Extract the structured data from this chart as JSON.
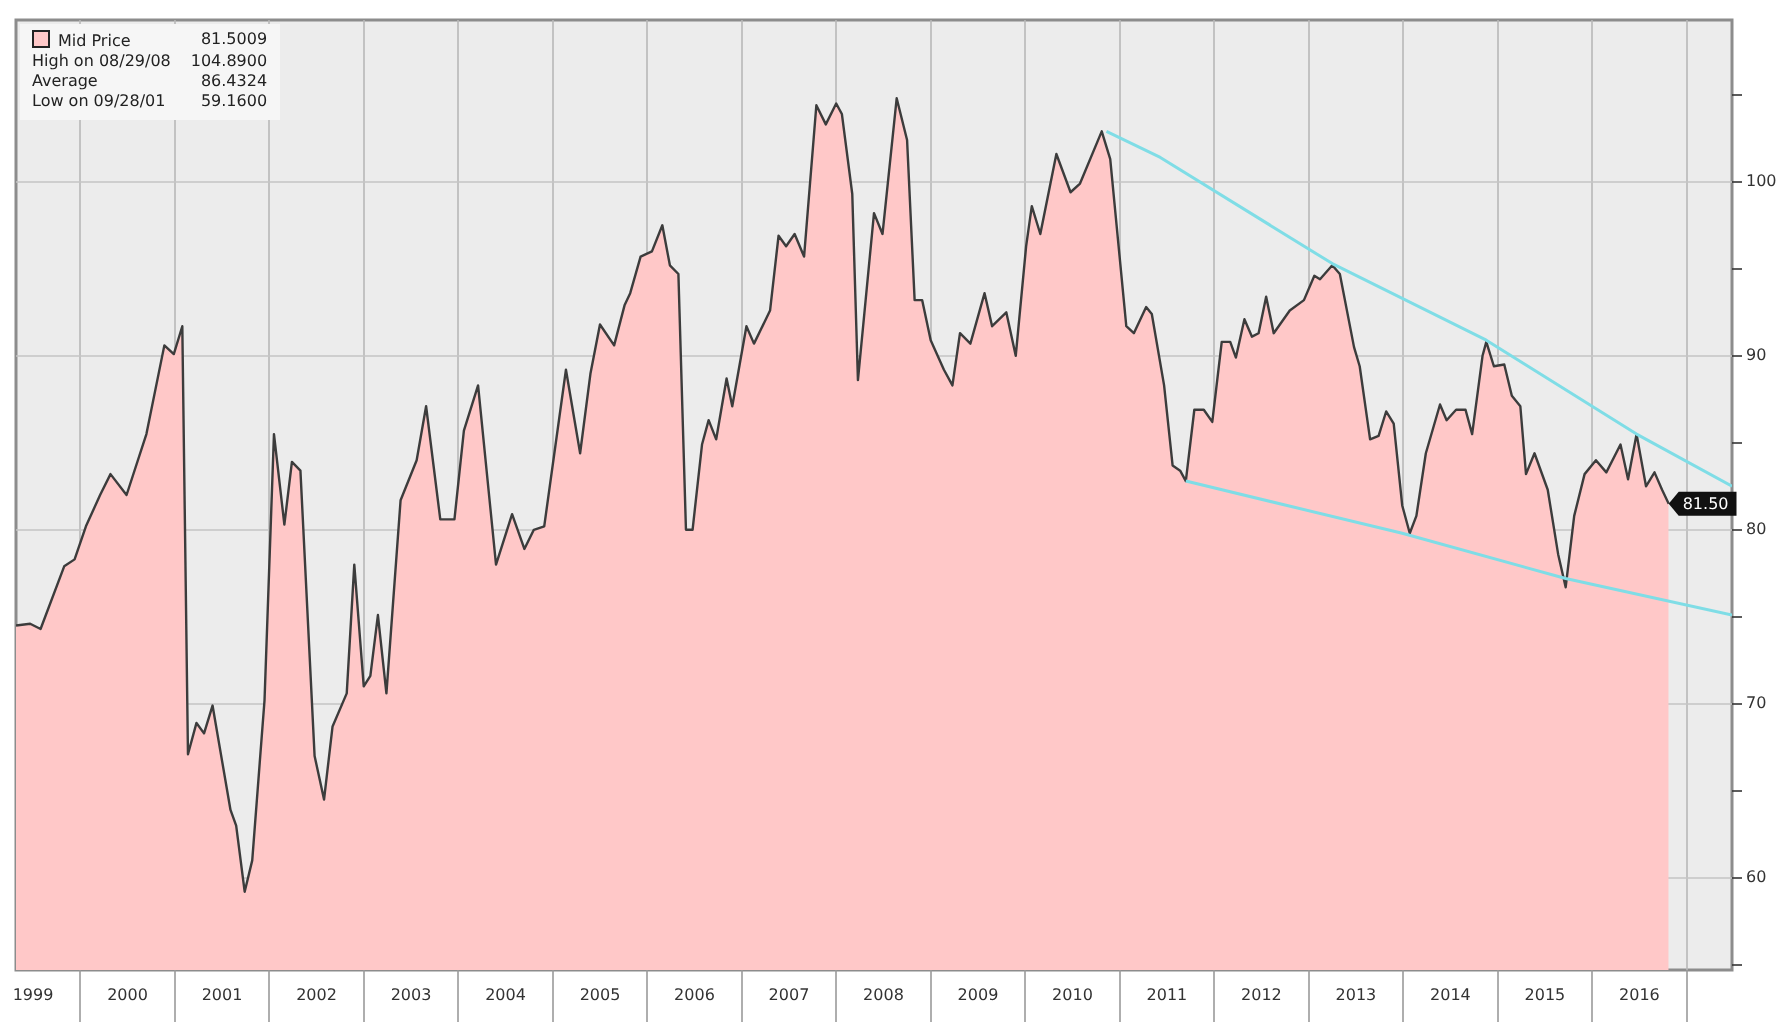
{
  "chart_data": {
    "type": "area",
    "legend": "top left",
    "grid": true,
    "xlim": [
      1999.32,
      2017.48
    ],
    "xticks": [
      {
        "value": 1999.5,
        "label": "1999"
      },
      {
        "value": 2000,
        "label": null
      },
      {
        "value": 2000.5,
        "label": "2000"
      },
      {
        "value": 2001,
        "label": null
      },
      {
        "value": 2001.5,
        "label": "2001"
      },
      {
        "value": 2002,
        "label": null
      },
      {
        "value": 2002.5,
        "label": "2002"
      },
      {
        "value": 2003,
        "label": null
      },
      {
        "value": 2003.5,
        "label": "2003"
      },
      {
        "value": 2004,
        "label": null
      },
      {
        "value": 2004.5,
        "label": "2004"
      },
      {
        "value": 2005,
        "label": null
      },
      {
        "value": 2005.5,
        "label": "2005"
      },
      {
        "value": 2006,
        "label": null
      },
      {
        "value": 2006.5,
        "label": "2006"
      },
      {
        "value": 2007,
        "label": null
      },
      {
        "value": 2007.5,
        "label": "2007"
      },
      {
        "value": 2008,
        "label": null
      },
      {
        "value": 2008.5,
        "label": "2008"
      },
      {
        "value": 2009,
        "label": null
      },
      {
        "value": 2009.5,
        "label": "2009"
      },
      {
        "value": 2010,
        "label": null
      },
      {
        "value": 2010.5,
        "label": "2010"
      },
      {
        "value": 2011,
        "label": null
      },
      {
        "value": 2011.5,
        "label": "2011"
      },
      {
        "value": 2012,
        "label": null
      },
      {
        "value": 2012.5,
        "label": "2012"
      },
      {
        "value": 2013,
        "label": null
      },
      {
        "value": 2013.5,
        "label": "2013"
      },
      {
        "value": 2014,
        "label": null
      },
      {
        "value": 2014.5,
        "label": "2014"
      },
      {
        "value": 2015,
        "label": null
      },
      {
        "value": 2015.5,
        "label": "2015"
      },
      {
        "value": 2016,
        "label": null
      },
      {
        "value": 2016.5,
        "label": "2016"
      },
      {
        "value": 2017,
        "label": null
      }
    ],
    "ylim": [
      54.7,
      109.3
    ],
    "yticks": [
      {
        "value": 55,
        "label": null
      },
      60,
      {
        "value": 65,
        "label": null
      },
      70,
      {
        "value": 75,
        "label": null
      },
      80,
      {
        "value": 85,
        "label": null
      },
      90,
      {
        "value": 95,
        "label": null
      },
      100,
      {
        "value": 105,
        "label": null
      }
    ],
    "annotations": [
      "81.5009",
      "High on 08/29/08",
      "104.8900",
      "Average",
      "86.4324",
      "Low on 09/28/01",
      "59.1600"
    ],
    "series": [
      {
        "name": "Mid Price",
        "color": "#ffc8c8",
        "x": [
          1999.32,
          1999.47,
          1999.58,
          1999.83,
          1999.94,
          2000.06,
          2000.21,
          2000.32,
          2000.49,
          2000.7,
          2000.89,
          2000.99,
          2001.08,
          2001.14,
          2001.23,
          2001.31,
          2001.4,
          2001.59,
          2001.65,
          2001.74,
          2001.82,
          2001.95,
          2002.05,
          2002.16,
          2002.24,
          2002.33,
          2002.48,
          2002.58,
          2002.67,
          2002.82,
          2002.9,
          2003.0,
          2003.07,
          2003.15,
          2003.24,
          2003.39,
          2003.56,
          2003.66,
          2003.81,
          2003.96,
          2004.06,
          2004.21,
          2004.4,
          2004.57,
          2004.7,
          2004.8,
          2004.91,
          2005.14,
          2005.29,
          2005.4,
          2005.5,
          2005.65,
          2005.76,
          2005.82,
          2005.93,
          2006.05,
          2006.16,
          2006.24,
          2006.33,
          2006.41,
          2006.48,
          2006.58,
          2006.65,
          2006.73,
          2006.84,
          2006.9,
          2007.05,
          2007.13,
          2007.3,
          2007.39,
          2007.47,
          2007.56,
          2007.66,
          2007.79,
          2007.89,
          2008.0,
          2008.06,
          2008.17,
          2008.23,
          2008.4,
          2008.49,
          2008.64,
          2008.75,
          2008.83,
          2008.91,
          2009.0,
          2009.14,
          2009.23,
          2009.31,
          2009.42,
          2009.57,
          2009.65,
          2009.8,
          2009.9,
          2010.01,
          2010.07,
          2010.16,
          2010.33,
          2010.48,
          2010.58,
          2010.81,
          2010.9,
          2011.07,
          2011.15,
          2011.28,
          2011.34,
          2011.47,
          2011.56,
          2011.64,
          2011.7,
          2011.79,
          2011.89,
          2011.98,
          2012.08,
          2012.17,
          2012.23,
          2012.32,
          2012.4,
          2012.47,
          2012.55,
          2012.63,
          2012.8,
          2012.95,
          2013.06,
          2013.12,
          2013.25,
          2013.33,
          2013.48,
          2013.54,
          2013.65,
          2013.74,
          2013.82,
          2013.9,
          2013.99,
          2014.07,
          2014.14,
          2014.24,
          2014.39,
          2014.46,
          2014.56,
          2014.66,
          2014.73,
          2014.84,
          2014.88,
          2014.96,
          2015.07,
          2015.15,
          2015.24,
          2015.3,
          2015.39,
          2015.53,
          2015.64,
          2015.72,
          2015.81,
          2015.92,
          2016.04,
          2016.15,
          2016.3,
          2016.38,
          2016.47,
          2016.57,
          2016.66,
          2016.74,
          2016.81
        ],
        "values": [
          74.5,
          74.6,
          74.3,
          77.9,
          78.3,
          80.2,
          82.0,
          83.2,
          82.0,
          85.5,
          90.6,
          90.1,
          91.7,
          67.1,
          68.9,
          68.3,
          69.9,
          63.9,
          63.0,
          59.2,
          61.0,
          70.2,
          85.5,
          80.3,
          83.9,
          83.4,
          67.0,
          64.5,
          68.7,
          70.6,
          78.0,
          71.0,
          71.6,
          75.1,
          70.6,
          81.7,
          84.0,
          87.1,
          80.6,
          80.6,
          85.7,
          88.3,
          78.0,
          80.9,
          78.9,
          80.0,
          80.2,
          89.2,
          84.4,
          89.0,
          91.8,
          90.6,
          92.9,
          93.6,
          95.7,
          96.0,
          97.5,
          95.2,
          94.7,
          80.0,
          80.0,
          84.9,
          86.3,
          85.2,
          88.7,
          87.1,
          91.7,
          90.7,
          92.6,
          96.9,
          96.3,
          97.0,
          95.7,
          104.4,
          103.3,
          104.5,
          103.9,
          99.3,
          88.6,
          98.2,
          97.0,
          104.8,
          102.4,
          93.2,
          93.2,
          90.9,
          89.2,
          88.3,
          91.3,
          90.7,
          93.6,
          91.7,
          92.5,
          90.0,
          96.3,
          98.6,
          97.0,
          101.6,
          99.4,
          99.9,
          102.9,
          101.3,
          91.7,
          91.3,
          92.8,
          92.4,
          88.3,
          83.7,
          83.4,
          82.8,
          86.9,
          86.9,
          86.2,
          90.8,
          90.8,
          89.9,
          92.1,
          91.1,
          91.3,
          93.4,
          91.3,
          92.6,
          93.2,
          94.6,
          94.4,
          95.2,
          94.7,
          90.5,
          89.4,
          85.2,
          85.4,
          86.8,
          86.1,
          81.4,
          79.8,
          80.8,
          84.4,
          87.2,
          86.3,
          86.9,
          86.9,
          85.5,
          90.0,
          90.8,
          89.4,
          89.5,
          87.7,
          87.1,
          83.2,
          84.4,
          82.3,
          78.6,
          76.7,
          80.8,
          83.2,
          84.0,
          83.3,
          84.9,
          82.9,
          85.5,
          82.5,
          83.3,
          82.3,
          81.5
        ],
        "value_labels": [
          null,
          null,
          null,
          null,
          null,
          null,
          null,
          null,
          null,
          null,
          null,
          null,
          null,
          null,
          null,
          null,
          null,
          null,
          null,
          null,
          null,
          null,
          null,
          null,
          null,
          null,
          null,
          null,
          null,
          null,
          null,
          null,
          null,
          null,
          null,
          null,
          null,
          null,
          null,
          null,
          null,
          null,
          null,
          null,
          null,
          null,
          null,
          null,
          null,
          null,
          null,
          null,
          null,
          null,
          null,
          null,
          null,
          null,
          null,
          null,
          null,
          null,
          null,
          null,
          null,
          null,
          null,
          null,
          null,
          null,
          null,
          null,
          null,
          null,
          null,
          null,
          null,
          null,
          null,
          null,
          null,
          null,
          null,
          null,
          null,
          null,
          null,
          null,
          null,
          null,
          null,
          null,
          null,
          null,
          null,
          null,
          null,
          null,
          null,
          null,
          null,
          null,
          null,
          null,
          null,
          null,
          null,
          null,
          null,
          null,
          null,
          null,
          null,
          null,
          null,
          null,
          null,
          null,
          null,
          null,
          null,
          null,
          null,
          null,
          null,
          null,
          null,
          null,
          null,
          null,
          null,
          null,
          null,
          null,
          null,
          null,
          null,
          null,
          null,
          null,
          null,
          null,
          null,
          null,
          null,
          null,
          null,
          null,
          null,
          null,
          null,
          null,
          null,
          null,
          null,
          null,
          null,
          null,
          null,
          null,
          null,
          null,
          null,
          "81.50"
        ]
      },
      {
        "type": "line",
        "color": "#7fdde6",
        "x": [
          2010.86,
          2011.43,
          2013.25,
          2014.88,
          2016.47,
          2017.48
        ],
        "values": [
          102.9,
          101.4,
          95.3,
          90.9,
          85.5,
          82.5
        ]
      },
      {
        "type": "line",
        "color": "#7fdde6",
        "x": [
          2011.7,
          2013.99,
          2015.72,
          2017.48
        ],
        "values": [
          82.8,
          79.8,
          77.2,
          75.1
        ]
      }
    ]
  }
}
